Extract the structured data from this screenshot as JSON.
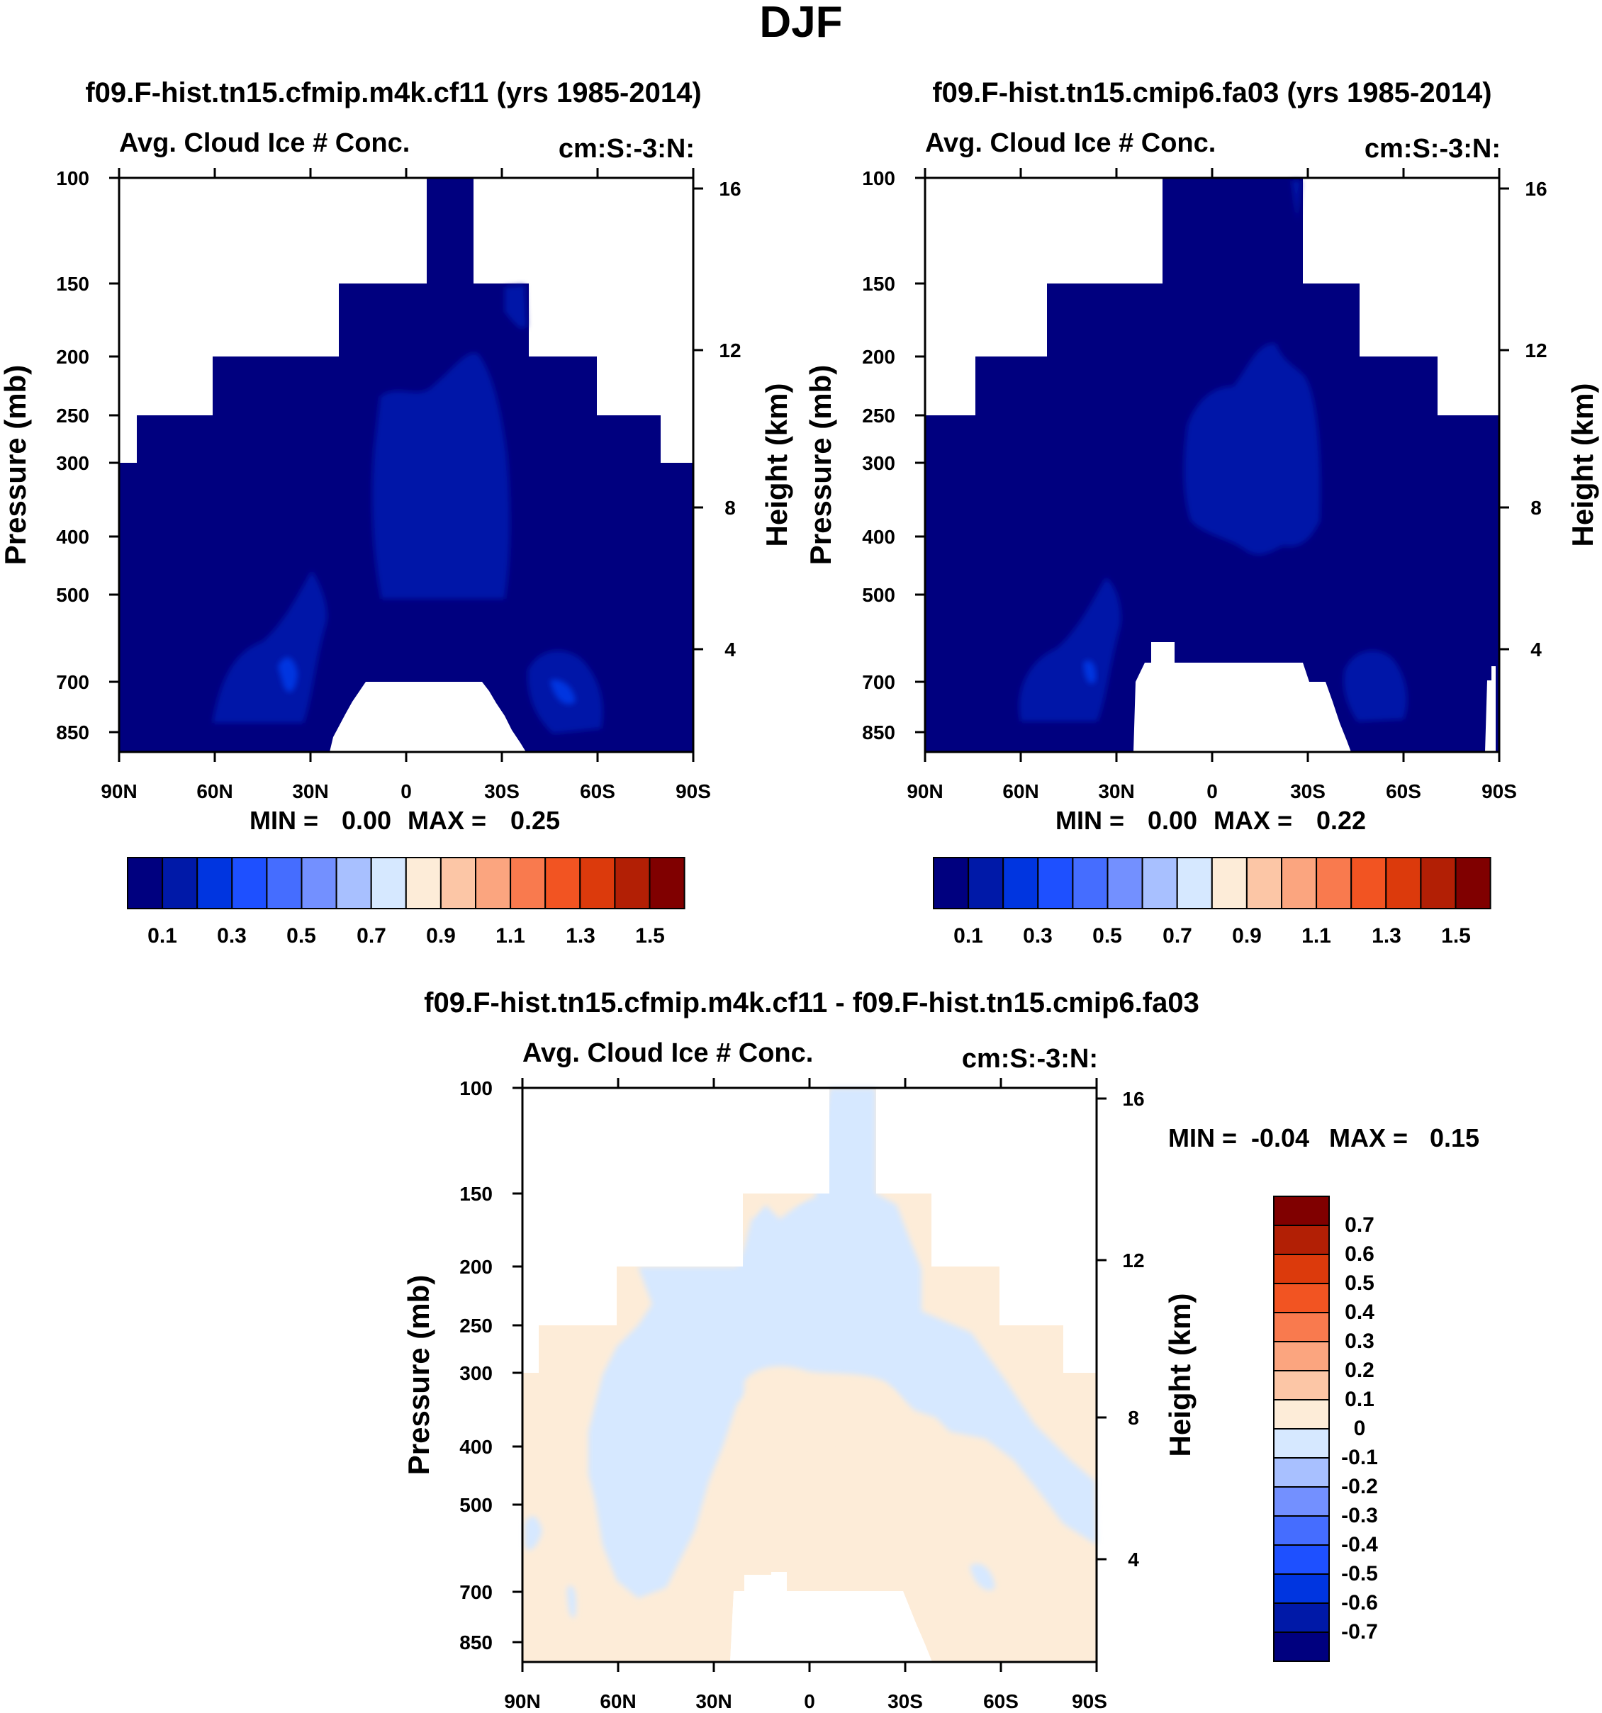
{
  "figure_title": "DJF",
  "colors": {
    "seq_colorbar": [
      "#00007f",
      "#0019a8",
      "#0035e0",
      "#1e50ff",
      "#456dff",
      "#7390ff",
      "#a8c0ff",
      "#d6e8ff",
      "#fdecd8",
      "#fcc6a6",
      "#fba57f",
      "#f97a4e",
      "#f25422",
      "#dc3a0c",
      "#b21f05",
      "#800000"
    ],
    "diff_colorbar": [
      "#00007f",
      "#0019a8",
      "#0035e0",
      "#1e50ff",
      "#456dff",
      "#7390ff",
      "#a8c0ff",
      "#d6e8ff",
      "#fdecd8",
      "#fcc6a6",
      "#fba57f",
      "#f97a4e",
      "#f25422",
      "#dc3a0c",
      "#b21f05",
      "#800000"
    ]
  },
  "chart_data": [
    {
      "type": "heatmap",
      "title": "f09.F-hist.tn15.cfmip.m4k.cf11 (yrs 1985-2014)",
      "left_label": "Avg. Cloud Ice # Conc.",
      "right_label": "cm:S:-3:N:",
      "ylabel": "Pressure (mb)",
      "ylabel_right": "Height (km)",
      "x_ticks": [
        "90N",
        "60N",
        "30N",
        "0",
        "30S",
        "60S",
        "90S"
      ],
      "y_ticks": [
        "100",
        "150",
        "200",
        "250",
        "300",
        "400",
        "500",
        "700",
        "850"
      ],
      "y_right_ticks": [
        "16",
        "12",
        "8",
        "4"
      ],
      "stats": {
        "min_label": "MIN =",
        "min": "0.00",
        "max_label": "MAX =",
        "max": "0.25"
      },
      "colorbar_labels": [
        "0.1",
        "0.3",
        "0.5",
        "0.7",
        "0.9",
        "1.1",
        "1.3",
        "1.5"
      ],
      "field_description_values": {
        "min": 0.0,
        "max": 0.25,
        "unit": "cm^-3"
      }
    },
    {
      "type": "heatmap",
      "title": "f09.F-hist.tn15.cmip6.fa03 (yrs 1985-2014)",
      "left_label": "Avg. Cloud Ice # Conc.",
      "right_label": "cm:S:-3:N:",
      "ylabel": "Pressure (mb)",
      "ylabel_right": "Height (km)",
      "x_ticks": [
        "90N",
        "60N",
        "30N",
        "0",
        "30S",
        "60S",
        "90S"
      ],
      "y_ticks": [
        "100",
        "150",
        "200",
        "250",
        "300",
        "400",
        "500",
        "700",
        "850"
      ],
      "y_right_ticks": [
        "16",
        "12",
        "8",
        "4"
      ],
      "stats": {
        "min_label": "MIN =",
        "min": "0.00",
        "max_label": "MAX =",
        "max": "0.22"
      },
      "colorbar_labels": [
        "0.1",
        "0.3",
        "0.5",
        "0.7",
        "0.9",
        "1.1",
        "1.3",
        "1.5"
      ],
      "field_description_values": {
        "min": 0.0,
        "max": 0.22,
        "unit": "cm^-3"
      }
    },
    {
      "type": "heatmap",
      "title": "f09.F-hist.tn15.cfmip.m4k.cf11 - f09.F-hist.tn15.cmip6.fa03",
      "left_label": "Avg. Cloud Ice # Conc.",
      "right_label": "cm:S:-3:N:",
      "ylabel": "Pressure (mb)",
      "ylabel_right": "Height (km)",
      "x_ticks": [
        "90N",
        "60N",
        "30N",
        "0",
        "30S",
        "60S",
        "90S"
      ],
      "y_ticks": [
        "100",
        "150",
        "200",
        "250",
        "300",
        "400",
        "500",
        "700",
        "850"
      ],
      "y_right_ticks": [
        "16",
        "12",
        "8",
        "4"
      ],
      "stats": {
        "min_label": "MIN =",
        "min": "-0.04",
        "max_label": "MAX =",
        "max": "0.15"
      },
      "colorbar_labels": [
        "0.7",
        "0.6",
        "0.5",
        "0.4",
        "0.3",
        "0.2",
        "0.1",
        "0",
        "-0.1",
        "-0.2",
        "-0.3",
        "-0.4",
        "-0.5",
        "-0.6",
        "-0.7"
      ],
      "field_description_values": {
        "min": -0.04,
        "max": 0.15,
        "unit": "cm^-3"
      }
    }
  ]
}
